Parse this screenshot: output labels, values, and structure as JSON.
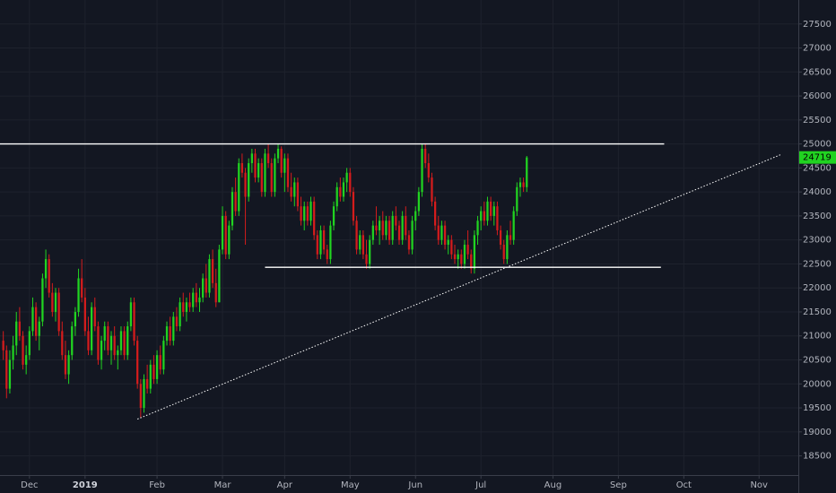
{
  "chart_data": {
    "type": "candlestick",
    "up_color": "#21d321",
    "down_color": "#d41c1c",
    "grid": true,
    "xlim": [
      -1,
      243
    ],
    "ylim": [
      18100,
      28000
    ],
    "yticks": [
      18500,
      19000,
      19500,
      20000,
      20500,
      21000,
      21500,
      22000,
      22500,
      23000,
      23500,
      24000,
      24500,
      25000,
      25500,
      26000,
      26500,
      27000,
      27500
    ],
    "xticks": [
      {
        "value": 8,
        "label": "Dec"
      },
      {
        "value": 25,
        "label": "2019"
      },
      {
        "value": 47,
        "label": "Feb"
      },
      {
        "value": 67,
        "label": "Mar"
      },
      {
        "value": 86,
        "label": "Apr"
      },
      {
        "value": 106,
        "label": "May"
      },
      {
        "value": 126,
        "label": "Jun"
      },
      {
        "value": 146,
        "label": "Jul"
      },
      {
        "value": 168,
        "label": "Aug"
      },
      {
        "value": 188,
        "label": "Sep"
      },
      {
        "value": 208,
        "label": "Oct"
      },
      {
        "value": 231,
        "label": "Nov"
      }
    ],
    "lines": [
      {
        "x": [
          -1,
          202
        ],
        "y": [
          25000,
          25000
        ],
        "color": "#ffffff",
        "style": "solid"
      },
      {
        "x": [
          80,
          201
        ],
        "y": [
          22430,
          22430
        ],
        "color": "#ffffff",
        "style": "solid"
      },
      {
        "x": [
          41,
          237.5
        ],
        "y": [
          19266,
          24774
        ],
        "color": "#ffffff",
        "style": "dotted"
      }
    ],
    "ohlc": [
      [
        20900,
        21100,
        20500,
        20700
      ],
      [
        20700,
        20800,
        19700,
        19900
      ],
      [
        19900,
        20700,
        19800,
        20500
      ],
      [
        20500,
        21000,
        20300,
        20800
      ],
      [
        20800,
        21500,
        20600,
        21300
      ],
      [
        21300,
        21600,
        20900,
        21000
      ],
      [
        21000,
        21100,
        20300,
        20400
      ],
      [
        20400,
        20800,
        20200,
        20600
      ],
      [
        20600,
        21200,
        20500,
        21100
      ],
      [
        21100,
        21800,
        21000,
        21600
      ],
      [
        21600,
        21700,
        20900,
        21000
      ],
      [
        21000,
        21400,
        20700,
        21300
      ],
      [
        21300,
        22300,
        21200,
        22200
      ],
      [
        22200,
        22800,
        22000,
        22600
      ],
      [
        22600,
        22700,
        21800,
        21900
      ],
      [
        21900,
        22100,
        21400,
        21500
      ],
      [
        21500,
        22000,
        21300,
        21900
      ],
      [
        21900,
        22000,
        21000,
        21100
      ],
      [
        21100,
        21300,
        20500,
        20600
      ],
      [
        20600,
        20900,
        20100,
        20200
      ],
      [
        20200,
        20700,
        20000,
        20600
      ],
      [
        20600,
        21300,
        20500,
        21200
      ],
      [
        21200,
        21600,
        21000,
        21500
      ],
      [
        21500,
        22400,
        21400,
        22200
      ],
      [
        22200,
        22600,
        21700,
        21800
      ],
      [
        21800,
        22000,
        21000,
        21100
      ],
      [
        21100,
        21400,
        20600,
        20700
      ],
      [
        20700,
        21700,
        20600,
        21600
      ],
      [
        21600,
        21800,
        21100,
        21200
      ],
      [
        21200,
        21300,
        20400,
        20500
      ],
      [
        20500,
        21000,
        20300,
        20900
      ],
      [
        20900,
        21300,
        20700,
        21200
      ],
      [
        21200,
        21300,
        20600,
        20700
      ],
      [
        20700,
        21100,
        20400,
        21000
      ],
      [
        21000,
        21200,
        20500,
        20600
      ],
      [
        20600,
        20800,
        20300,
        20700
      ],
      [
        20700,
        21200,
        20600,
        21100
      ],
      [
        21100,
        21200,
        20500,
        20600
      ],
      [
        20600,
        21300,
        20500,
        21200
      ],
      [
        21200,
        21800,
        21100,
        21700
      ],
      [
        21700,
        21800,
        20800,
        20900
      ],
      [
        20900,
        21000,
        19900,
        20000
      ],
      [
        20000,
        20100,
        19300,
        19500
      ],
      [
        19500,
        20200,
        19400,
        20100
      ],
      [
        20100,
        20400,
        19800,
        19900
      ],
      [
        19900,
        20500,
        19800,
        20400
      ],
      [
        20400,
        20600,
        20000,
        20100
      ],
      [
        20100,
        20700,
        20000,
        20600
      ],
      [
        20600,
        20800,
        20200,
        20300
      ],
      [
        20300,
        21000,
        20200,
        20900
      ],
      [
        20900,
        21300,
        20800,
        21200
      ],
      [
        21200,
        21400,
        20800,
        20900
      ],
      [
        20900,
        21500,
        20800,
        21400
      ],
      [
        21400,
        21600,
        21100,
        21200
      ],
      [
        21200,
        21800,
        21100,
        21700
      ],
      [
        21700,
        21900,
        21400,
        21500
      ],
      [
        21500,
        21800,
        21300,
        21700
      ],
      [
        21700,
        21900,
        21500,
        21600
      ],
      [
        21600,
        22000,
        21500,
        21900
      ],
      [
        21900,
        22100,
        21600,
        21700
      ],
      [
        21700,
        22000,
        21500,
        21800
      ],
      [
        21800,
        22300,
        21700,
        22200
      ],
      [
        22200,
        22500,
        21800,
        21900
      ],
      [
        21900,
        22700,
        21800,
        22600
      ],
      [
        22600,
        22800,
        22000,
        22100
      ],
      [
        22100,
        22400,
        21600,
        21700
      ],
      [
        21700,
        22900,
        21700,
        22800
      ],
      [
        22800,
        23700,
        22700,
        23500
      ],
      [
        23500,
        23600,
        22600,
        22700
      ],
      [
        22700,
        23400,
        22600,
        23300
      ],
      [
        23300,
        24100,
        23200,
        24000
      ],
      [
        24000,
        24300,
        23500,
        23600
      ],
      [
        23600,
        24700,
        23500,
        24600
      ],
      [
        24600,
        24800,
        24300,
        24400
      ],
      [
        24400,
        24500,
        22900,
        23900
      ],
      [
        23900,
        24700,
        23800,
        24600
      ],
      [
        24600,
        24900,
        24400,
        24800
      ],
      [
        24800,
        24900,
        24200,
        24300
      ],
      [
        24300,
        24700,
        24200,
        24600
      ],
      [
        24600,
        24700,
        23900,
        24000
      ],
      [
        24000,
        24900,
        23900,
        24800
      ],
      [
        24800,
        25000,
        24500,
        24600
      ],
      [
        24600,
        24700,
        23900,
        24000
      ],
      [
        24000,
        24800,
        23900,
        24700
      ],
      [
        24700,
        25000,
        24600,
        24900
      ],
      [
        24900,
        24950,
        24300,
        24400
      ],
      [
        24400,
        24800,
        24000,
        24700
      ],
      [
        24700,
        24800,
        24000,
        24100
      ],
      [
        24100,
        24400,
        23800,
        23900
      ],
      [
        23900,
        24300,
        23700,
        24200
      ],
      [
        24200,
        24300,
        23600,
        23700
      ],
      [
        23700,
        23900,
        23300,
        23400
      ],
      [
        23400,
        23800,
        23200,
        23700
      ],
      [
        23700,
        23800,
        23300,
        23400
      ],
      [
        23400,
        23900,
        23300,
        23800
      ],
      [
        23800,
        23900,
        23000,
        23100
      ],
      [
        23100,
        23200,
        22600,
        22700
      ],
      [
        22700,
        23300,
        22600,
        23200
      ],
      [
        23200,
        23300,
        22700,
        22800
      ],
      [
        22800,
        22900,
        22500,
        22600
      ],
      [
        22600,
        23400,
        22500,
        23300
      ],
      [
        23300,
        23800,
        23200,
        23700
      ],
      [
        23700,
        24200,
        23600,
        24100
      ],
      [
        24100,
        24300,
        23800,
        23900
      ],
      [
        23900,
        24300,
        23800,
        24200
      ],
      [
        24200,
        24500,
        24000,
        24400
      ],
      [
        24400,
        24500,
        23900,
        24000
      ],
      [
        24000,
        24100,
        23300,
        23400
      ],
      [
        23400,
        23500,
        22700,
        22800
      ],
      [
        22800,
        23200,
        22700,
        23100
      ],
      [
        23100,
        23200,
        22600,
        22700
      ],
      [
        22700,
        23000,
        22400,
        22500
      ],
      [
        22500,
        23100,
        22400,
        23000
      ],
      [
        23000,
        23400,
        22900,
        23300
      ],
      [
        23300,
        23700,
        23100,
        23200
      ],
      [
        23200,
        23500,
        22900,
        23400
      ],
      [
        23400,
        23600,
        23000,
        23100
      ],
      [
        23100,
        23500,
        23000,
        23400
      ],
      [
        23400,
        23500,
        22900,
        23000
      ],
      [
        23000,
        23600,
        22900,
        23500
      ],
      [
        23500,
        23700,
        23200,
        23300
      ],
      [
        23300,
        23400,
        22900,
        23000
      ],
      [
        23000,
        23600,
        22900,
        23500
      ],
      [
        23500,
        23700,
        23000,
        23100
      ],
      [
        23100,
        23200,
        22700,
        22800
      ],
      [
        22800,
        23500,
        22700,
        23400
      ],
      [
        23400,
        23700,
        23200,
        23600
      ],
      [
        23600,
        24100,
        23500,
        24000
      ],
      [
        24000,
        25000,
        23900,
        24900
      ],
      [
        24900,
        25000,
        24500,
        24600
      ],
      [
        24600,
        24800,
        24200,
        24300
      ],
      [
        24300,
        24400,
        23700,
        23800
      ],
      [
        23800,
        23900,
        23200,
        23300
      ],
      [
        23300,
        23500,
        22900,
        23000
      ],
      [
        23000,
        23400,
        22900,
        23300
      ],
      [
        23300,
        23400,
        22800,
        22900
      ],
      [
        22900,
        23100,
        22700,
        23000
      ],
      [
        23000,
        23100,
        22600,
        22700
      ],
      [
        22700,
        22900,
        22500,
        22600
      ],
      [
        22600,
        22800,
        22400,
        22700
      ],
      [
        22700,
        22800,
        22400,
        22500
      ],
      [
        22500,
        23000,
        22400,
        22900
      ],
      [
        22900,
        23200,
        22600,
        22700
      ],
      [
        22700,
        22800,
        22300,
        22400
      ],
      [
        22400,
        23200,
        22300,
        23100
      ],
      [
        23100,
        23500,
        22900,
        23400
      ],
      [
        23400,
        23700,
        23200,
        23600
      ],
      [
        23600,
        23800,
        23300,
        23400
      ],
      [
        23400,
        23900,
        23300,
        23800
      ],
      [
        23800,
        23900,
        23400,
        23500
      ],
      [
        23500,
        23800,
        23300,
        23700
      ],
      [
        23700,
        23800,
        23100,
        23200
      ],
      [
        23200,
        23300,
        22800,
        22900
      ],
      [
        22900,
        23000,
        22500,
        22600
      ],
      [
        22600,
        23200,
        22500,
        23100
      ],
      [
        23100,
        23400,
        22900,
        23000
      ],
      [
        23000,
        23700,
        22900,
        23600
      ],
      [
        23600,
        24200,
        23500,
        24100
      ],
      [
        24100,
        24300,
        23900,
        24200
      ],
      [
        24200,
        24300,
        24000,
        24100
      ],
      [
        24100,
        24750,
        24000,
        24719
      ]
    ]
  }
}
